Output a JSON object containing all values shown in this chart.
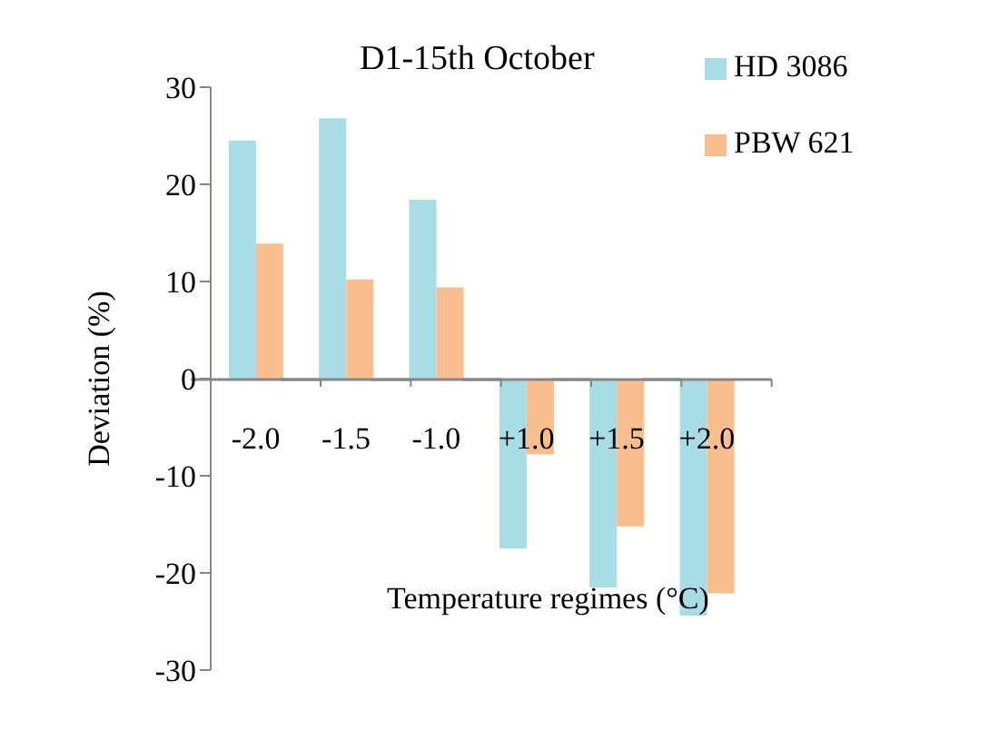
{
  "chart_data": {
    "type": "bar",
    "title": "D1-15th October",
    "xlabel": "Temperature regimes (°C)",
    "ylabel": "Deviation (%)",
    "categories": [
      "-2.0",
      "-1.5",
      "-1.0",
      "+1.0",
      "+1.5",
      "+2.0"
    ],
    "series": [
      {
        "name": "HD 3086",
        "color": "#a8dde6",
        "values": [
          24.5,
          26.8,
          18.4,
          -17.5,
          -21.5,
          -24.4
        ]
      },
      {
        "name": "PBW 621",
        "color": "#f8be8e",
        "values": [
          13.9,
          10.2,
          9.4,
          -7.8,
          -15.2,
          -22.1
        ]
      }
    ],
    "ylim": [
      -30,
      30
    ],
    "yticks": [
      -30,
      -20,
      -10,
      0,
      10,
      20,
      30
    ],
    "grid": false,
    "legend": "top right"
  }
}
